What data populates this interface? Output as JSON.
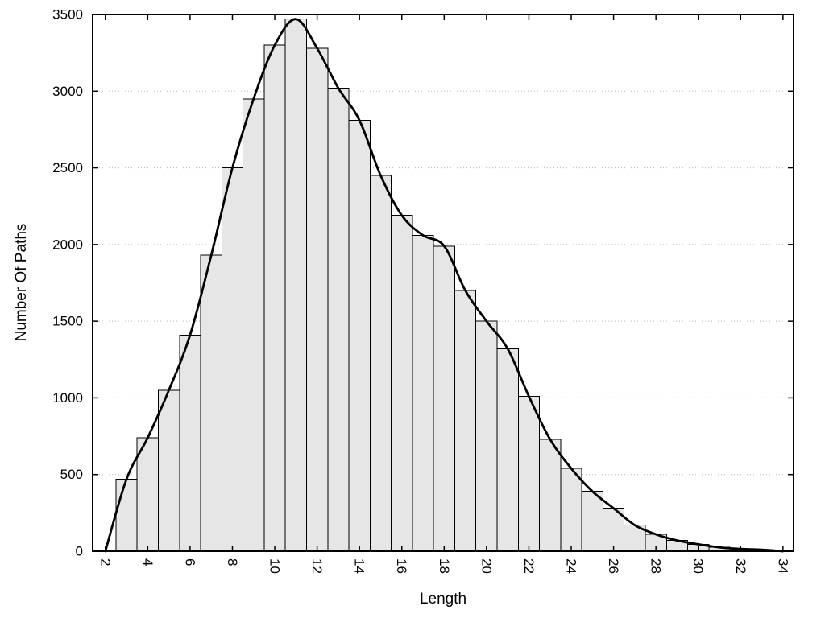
{
  "chart_data": {
    "type": "histogram-with-curve",
    "xlabel": "Length",
    "ylabel": "Number Of Paths",
    "xlim": [
      1.4,
      34.5
    ],
    "ylim": [
      0,
      3500
    ],
    "x_ticks": [
      2,
      4,
      6,
      8,
      10,
      12,
      14,
      16,
      18,
      20,
      22,
      24,
      26,
      28,
      30,
      32,
      34
    ],
    "y_ticks": [
      0,
      500,
      1000,
      1500,
      2000,
      2500,
      3000,
      3500
    ],
    "grid": "horizontal-dotted",
    "bar_width": 1,
    "bar_centers": [
      3,
      4,
      5,
      6,
      7,
      8,
      9,
      10,
      11,
      12,
      13,
      14,
      15,
      16,
      17,
      18,
      19,
      20,
      21,
      22,
      23,
      24,
      25,
      26,
      27,
      28,
      29,
      30,
      31,
      32,
      33,
      34
    ],
    "bar_values": [
      470,
      740,
      1050,
      1410,
      1930,
      2500,
      2950,
      3300,
      3470,
      3280,
      3020,
      2810,
      2450,
      2190,
      2060,
      1990,
      1700,
      1500,
      1320,
      1010,
      730,
      540,
      390,
      280,
      170,
      110,
      70,
      45,
      25,
      15,
      10,
      5
    ],
    "curve_points": [
      [
        2,
        0
      ],
      [
        3,
        470
      ],
      [
        4,
        740
      ],
      [
        5,
        1050
      ],
      [
        6,
        1410
      ],
      [
        7,
        1930
      ],
      [
        8,
        2500
      ],
      [
        9,
        2950
      ],
      [
        10,
        3300
      ],
      [
        11,
        3470
      ],
      [
        12,
        3280
      ],
      [
        13,
        3020
      ],
      [
        14,
        2810
      ],
      [
        15,
        2450
      ],
      [
        16,
        2190
      ],
      [
        17,
        2060
      ],
      [
        18,
        1990
      ],
      [
        19,
        1700
      ],
      [
        20,
        1500
      ],
      [
        21,
        1320
      ],
      [
        22,
        1010
      ],
      [
        23,
        730
      ],
      [
        24,
        540
      ],
      [
        25,
        390
      ],
      [
        26,
        280
      ],
      [
        27,
        170
      ],
      [
        28,
        110
      ],
      [
        29,
        70
      ],
      [
        30,
        45
      ],
      [
        31,
        25
      ],
      [
        32,
        15
      ],
      [
        33,
        10
      ],
      [
        34,
        0
      ]
    ],
    "colors": {
      "background": "#ffffff",
      "bar_fill": "#e6e6e6",
      "bar_stroke": "#000000",
      "curve": "#000000",
      "grid": "#b8b8b8",
      "frame": "#000000",
      "text": "#000000"
    }
  }
}
